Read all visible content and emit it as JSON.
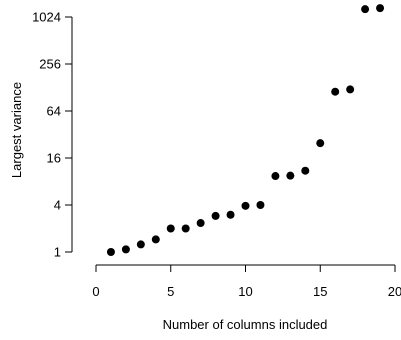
{
  "chart_data": {
    "type": "scatter",
    "title": "",
    "xlabel": "Number of columns included",
    "ylabel": "Largest variance",
    "x_scale": "linear",
    "y_scale": "log2",
    "xlim": [
      0,
      20
    ],
    "ylim": [
      0.85,
      1400
    ],
    "x_ticks": [
      0,
      5,
      10,
      15,
      20
    ],
    "x_tick_labels": [
      "0",
      "5",
      "10",
      "15",
      "20"
    ],
    "y_ticks": [
      1,
      4,
      16,
      64,
      256,
      1024
    ],
    "y_tick_labels": [
      "1",
      "4",
      "16",
      "64",
      "256",
      "1024"
    ],
    "grid": false,
    "legend": "none",
    "point_color": "#000000",
    "x": [
      1,
      2,
      3,
      4,
      5,
      6,
      7,
      8,
      9,
      10,
      11,
      12,
      13,
      14,
      15,
      16,
      17,
      18,
      19
    ],
    "y": [
      1.0,
      1.08,
      1.25,
      1.45,
      2.0,
      2.0,
      2.35,
      2.9,
      3.0,
      3.9,
      4.0,
      9.4,
      9.5,
      11.0,
      24.8,
      113,
      121,
      1290,
      1330
    ]
  }
}
